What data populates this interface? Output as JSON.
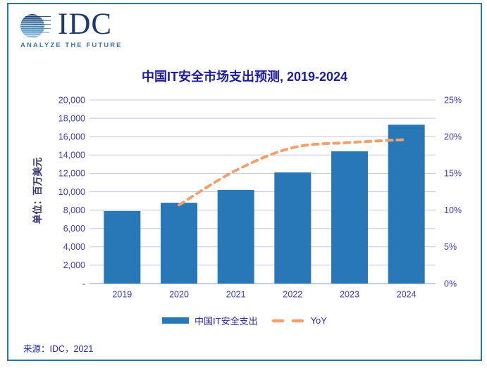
{
  "logo": {
    "brand": "IDC",
    "tagline": "ANALYZE THE FUTURE"
  },
  "source": "来源：IDC，2021",
  "colors": {
    "frame": "#2C74A6",
    "bar": "#2878B8",
    "line": "#F2A06E",
    "grid": "#C5C5E9",
    "axis": "#AAAAD7",
    "title": "#1C1C9C",
    "tick": "#3C3CB2",
    "axis-title": "#33336E",
    "legend-text": "#2B2BA4",
    "source": "#2A2AA0",
    "logo-navy": "#1F3968",
    "logo-blue": "#3D79A8"
  },
  "chart_data": {
    "type": "combo",
    "title": "中国IT安全市场支出预测, 2019-2024",
    "categories": [
      "2019",
      "2020",
      "2021",
      "2022",
      "2023",
      "2024"
    ],
    "series": [
      {
        "name": "中国IT安全支出",
        "type": "bar",
        "axis": "left",
        "values": [
          7900,
          8800,
          10200,
          12100,
          14400,
          17300
        ]
      },
      {
        "name": "YoY",
        "type": "line",
        "style": "dashed",
        "axis": "right",
        "values": [
          null,
          10.7,
          15.4,
          18.5,
          19.2,
          19.6
        ]
      }
    ],
    "ylabel_left": "单位：百万美元",
    "left_axis": {
      "min": 0,
      "max": 20000,
      "step": 2000,
      "tick_labels": [
        "20,000",
        "18,000",
        "16,000",
        "14,000",
        "12,000",
        "10,000",
        "8,000",
        "6,000",
        "4,000",
        "2,000",
        "-"
      ]
    },
    "right_axis": {
      "min": 0,
      "max": 25,
      "step": 5,
      "tick_labels": [
        "25%",
        "20%",
        "15%",
        "10%",
        "5%",
        "0%"
      ]
    },
    "grid": true,
    "legend_position": "bottom"
  }
}
